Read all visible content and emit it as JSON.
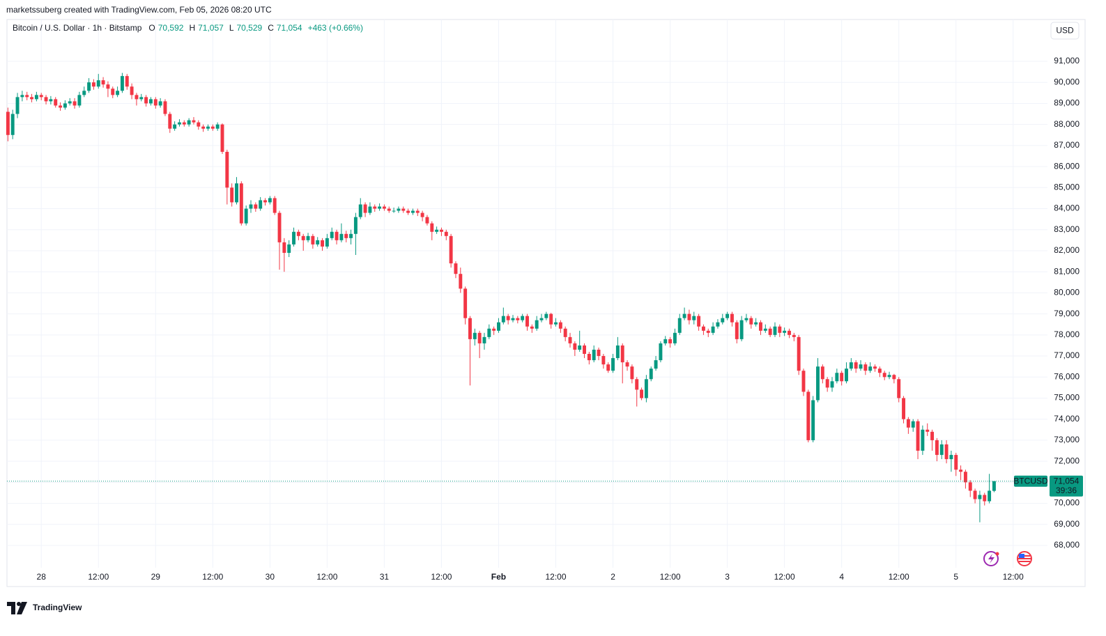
{
  "chart_data": {
    "type": "candlestick",
    "attribution": "marketssuberg created with TradingView.com, Feb 05, 2026 08:20 UTC",
    "title": "Bitcoin / U.S. Dollar · 1h · Bitstamp",
    "ohlc_legend": [
      {
        "label": "O",
        "value": "70,592"
      },
      {
        "label": "H",
        "value": "71,057"
      },
      {
        "label": "L",
        "value": "70,529"
      },
      {
        "label": "C",
        "value": "71,054"
      }
    ],
    "change": "+463 (+0.66%)",
    "currency": "USD",
    "symbol_tag": "BTCUSD",
    "last_price_label": "71,054",
    "countdown": "39:36",
    "brand": "TradingView",
    "up_color": "#089981",
    "down_color": "#f23645",
    "grid": true,
    "xlim": [
      -0.2,
      218.2
    ],
    "ylim": [
      66941,
      92986
    ],
    "xticks": [
      {
        "value": 7,
        "label": "28"
      },
      {
        "value": 19,
        "label": "12:00"
      },
      {
        "value": 31,
        "label": "29"
      },
      {
        "value": 43,
        "label": "12:00"
      },
      {
        "value": 55,
        "label": "30"
      },
      {
        "value": 67,
        "label": "12:00"
      },
      {
        "value": 79,
        "label": "31"
      },
      {
        "value": 91,
        "label": "12:00"
      },
      {
        "value": 103,
        "label": "Feb"
      },
      {
        "value": 115,
        "label": "12:00"
      },
      {
        "value": 127,
        "label": "2"
      },
      {
        "value": 139,
        "label": "12:00"
      },
      {
        "value": 151,
        "label": "3"
      },
      {
        "value": 163,
        "label": "12:00"
      },
      {
        "value": 175,
        "label": "4"
      },
      {
        "value": 187,
        "label": "12:00"
      },
      {
        "value": 199,
        "label": "5"
      },
      {
        "value": 211,
        "label": "12:00"
      }
    ],
    "yticks": [
      {
        "value": 68000,
        "label": "68,000"
      },
      {
        "value": 69000,
        "label": "69,000"
      },
      {
        "value": 70000,
        "label": "70,000"
      },
      {
        "value": 71000,
        "label": "71,000"
      },
      {
        "value": 72000,
        "label": "72,000"
      },
      {
        "value": 73000,
        "label": "73,000"
      },
      {
        "value": 74000,
        "label": "74,000"
      },
      {
        "value": 75000,
        "label": "75,000"
      },
      {
        "value": 76000,
        "label": "76,000"
      },
      {
        "value": 77000,
        "label": "77,000"
      },
      {
        "value": 78000,
        "label": "78,000"
      },
      {
        "value": 79000,
        "label": "79,000"
      },
      {
        "value": 80000,
        "label": "80,000"
      },
      {
        "value": 81000,
        "label": "81,000"
      },
      {
        "value": 82000,
        "label": "82,000"
      },
      {
        "value": 83000,
        "label": "83,000"
      },
      {
        "value": 84000,
        "label": "84,000"
      },
      {
        "value": 85000,
        "label": "85,000"
      },
      {
        "value": 86000,
        "label": "86,000"
      },
      {
        "value": 87000,
        "label": "87,000"
      },
      {
        "value": 88000,
        "label": "88,000"
      },
      {
        "value": 89000,
        "label": "89,000"
      },
      {
        "value": 90000,
        "label": "90,000"
      },
      {
        "value": 91000,
        "label": "91,000"
      }
    ],
    "open": [
      88600,
      87500,
      88500,
      89300,
      89400,
      89300,
      89200,
      89400,
      89300,
      89100,
      89200,
      88900,
      88800,
      89000,
      89100,
      88900,
      89400,
      89600,
      90000,
      89800,
      90100,
      89900,
      89700,
      89400,
      89600,
      90300,
      89800,
      89400,
      89200,
      89300,
      89000,
      89200,
      88900,
      89100,
      88500,
      87800,
      88000,
      88100,
      88000,
      88200,
      88100,
      87900,
      87800,
      87900,
      87800,
      88000,
      86700,
      85000,
      84300,
      85200,
      83300,
      84000,
      84200,
      84000,
      84400,
      84300,
      84500,
      83800,
      82400,
      81900,
      82300,
      82900,
      82700,
      82500,
      82700,
      82300,
      82500,
      82200,
      82600,
      82900,
      82500,
      82800,
      82600,
      82800,
      83600,
      84200,
      83800,
      84100,
      84000,
      84100,
      84000,
      83900,
      83900,
      84000,
      83900,
      83800,
      83900,
      83800,
      83600,
      83300,
      82900,
      83000,
      82900,
      82700,
      81400,
      80900,
      80200,
      78800,
      77800,
      78100,
      77600,
      77900,
      78300,
      78200,
      78600,
      78900,
      78700,
      78800,
      78700,
      78900,
      78400,
      78300,
      78700,
      78800,
      79000,
      78500,
      78600,
      78300,
      77900,
      77600,
      77300,
      77500,
      77100,
      76800,
      77300,
      77000,
      76600,
      76300,
      76900,
      77500,
      76700,
      76500,
      75900,
      75400,
      75000,
      75900,
      76400,
      76800,
      77600,
      77800,
      77600,
      78100,
      78800,
      79000,
      78700,
      78900,
      78400,
      78200,
      78100,
      78400,
      78600,
      78800,
      79000,
      78600,
      77800,
      78700,
      78800,
      78500,
      78600,
      78200,
      78300,
      78000,
      78400,
      78100,
      78200,
      78000,
      77900,
      76300,
      75300,
      73000,
      74900,
      76500,
      75900,
      75500,
      75800,
      76200,
      75800,
      76400,
      76700,
      76400,
      76600,
      76300,
      76500,
      76400,
      76200,
      76000,
      76100,
      75900,
      75000,
      74000,
      73600,
      73900,
      72500,
      73500,
      73400,
      73000,
      72300,
      72800,
      72100,
      72300,
      71600,
      71500,
      71000,
      70600,
      70200,
      70400,
      70100,
      70592
    ],
    "high": [
      88800,
      88700,
      89500,
      89600,
      89550,
      89450,
      89550,
      89500,
      89400,
      89350,
      89300,
      89050,
      89150,
      89250,
      89250,
      89550,
      89800,
      90200,
      90150,
      90400,
      90250,
      90050,
      89800,
      89800,
      90450,
      90400,
      89950,
      89500,
      89450,
      89400,
      89300,
      89300,
      89250,
      89200,
      88600,
      88150,
      88250,
      88200,
      88300,
      88350,
      88200,
      88000,
      88000,
      88000,
      88100,
      88050,
      86800,
      85200,
      85500,
      85300,
      84150,
      84400,
      84300,
      84550,
      84500,
      84600,
      84600,
      83900,
      82600,
      82500,
      83100,
      83000,
      82800,
      82850,
      82800,
      82650,
      82600,
      82800,
      83100,
      83000,
      83300,
      82950,
      83000,
      83800,
      84500,
      84300,
      84300,
      84200,
      84250,
      84200,
      84100,
      84050,
      84100,
      84100,
      84000,
      84000,
      84000,
      83900,
      83700,
      83400,
      83150,
      83100,
      83000,
      82800,
      81500,
      81200,
      80300,
      78900,
      78300,
      78200,
      78100,
      78500,
      78400,
      78800,
      79300,
      79000,
      78950,
      78900,
      79000,
      79000,
      78500,
      78900,
      79000,
      79100,
      79050,
      78800,
      78700,
      78400,
      78100,
      77700,
      78200,
      77600,
      77200,
      77500,
      77400,
      77100,
      76700,
      77100,
      77900,
      77600,
      76800,
      76600,
      76000,
      75500,
      76100,
      76500,
      77000,
      77700,
      77950,
      77900,
      78300,
      79000,
      79300,
      79200,
      79100,
      79000,
      78500,
      78300,
      78600,
      78750,
      79000,
      79100,
      79100,
      78700,
      78900,
      79000,
      78900,
      78800,
      78700,
      78500,
      78400,
      78600,
      78500,
      78350,
      78300,
      78100,
      78000,
      76400,
      75400,
      75100,
      76900,
      76600,
      76000,
      76000,
      76400,
      76300,
      76700,
      76900,
      76800,
      76800,
      76700,
      76700,
      76600,
      76500,
      76300,
      76250,
      76150,
      76000,
      75100,
      74100,
      74000,
      74000,
      73700,
      73800,
      73500,
      73100,
      73000,
      73000,
      72500,
      72400,
      71800,
      71600,
      71100,
      70700,
      70600,
      70500,
      71400,
      71057
    ],
    "low": [
      87200,
      87300,
      88300,
      89100,
      89150,
      89050,
      89100,
      89150,
      88950,
      88950,
      88800,
      88650,
      88700,
      88900,
      88750,
      88800,
      89300,
      89500,
      89650,
      89700,
      89750,
      89300,
      89250,
      89300,
      89500,
      89650,
      89200,
      88900,
      89100,
      88850,
      88900,
      88750,
      88800,
      88400,
      87600,
      87700,
      87900,
      87900,
      87900,
      88000,
      87750,
      87650,
      87700,
      87700,
      87700,
      86600,
      84200,
      84100,
      84200,
      83200,
      83200,
      83800,
      83850,
      83900,
      84150,
      84200,
      83700,
      81100,
      81000,
      81700,
      82200,
      82500,
      82000,
      82400,
      82100,
      82200,
      82000,
      82100,
      82500,
      82300,
      82400,
      82400,
      82300,
      81800,
      83500,
      83600,
      83700,
      83850,
      83900,
      83900,
      83800,
      83800,
      83800,
      83800,
      83700,
      83700,
      83650,
      83400,
      83200,
      82500,
      82800,
      82700,
      82500,
      81200,
      80700,
      80000,
      78500,
      75600,
      77500,
      76900,
      77300,
      77800,
      78000,
      78100,
      78500,
      78500,
      78600,
      78550,
      78600,
      78200,
      78100,
      78200,
      78600,
      78700,
      78300,
      78400,
      78100,
      77700,
      77400,
      77000,
      77200,
      76900,
      76600,
      76700,
      76800,
      76400,
      76200,
      76200,
      76800,
      75700,
      76300,
      75700,
      74600,
      74900,
      74800,
      75800,
      76300,
      76700,
      77500,
      77400,
      77500,
      78000,
      78700,
      78500,
      78500,
      78200,
      78000,
      77900,
      78000,
      78300,
      78500,
      78700,
      78400,
      77600,
      77700,
      78600,
      78300,
      78400,
      78000,
      78100,
      77900,
      77900,
      77900,
      77950,
      77850,
      77700,
      76100,
      75100,
      72900,
      72900,
      74800,
      75700,
      75300,
      75300,
      75700,
      75600,
      75700,
      76300,
      76200,
      76300,
      76100,
      76200,
      76250,
      76000,
      75850,
      75900,
      75700,
      74800,
      73800,
      73300,
      73400,
      72100,
      72300,
      73200,
      72500,
      72000,
      72100,
      71900,
      71500,
      71300,
      71100,
      70700,
      70300,
      70000,
      69100,
      69900,
      70000,
      70529
    ],
    "close": [
      87500,
      88500,
      89300,
      89400,
      89300,
      89200,
      89400,
      89300,
      89100,
      89200,
      88900,
      88800,
      89000,
      89100,
      88900,
      89400,
      89600,
      90000,
      89800,
      90100,
      89900,
      89700,
      89400,
      89600,
      90300,
      89800,
      89400,
      89200,
      89300,
      89000,
      89200,
      88900,
      89100,
      88500,
      87800,
      88000,
      88100,
      88000,
      88200,
      88100,
      87900,
      87800,
      87900,
      87800,
      88000,
      86700,
      85000,
      84300,
      85200,
      83300,
      84000,
      84200,
      84000,
      84400,
      84300,
      84500,
      83800,
      82400,
      81900,
      82300,
      82900,
      82700,
      82500,
      82700,
      82300,
      82500,
      82200,
      82600,
      82900,
      82500,
      82800,
      82600,
      82800,
      83600,
      84200,
      83800,
      84100,
      84000,
      84100,
      84000,
      83900,
      83900,
      84000,
      83900,
      83800,
      83900,
      83800,
      83600,
      83300,
      82900,
      83000,
      82900,
      82700,
      81400,
      80900,
      80200,
      78800,
      77800,
      78100,
      77600,
      77900,
      78300,
      78200,
      78600,
      78900,
      78700,
      78800,
      78700,
      78900,
      78400,
      78300,
      78700,
      78800,
      79000,
      78500,
      78600,
      78300,
      77900,
      77600,
      77300,
      77500,
      77100,
      76800,
      77300,
      77000,
      76600,
      76300,
      76900,
      77500,
      76700,
      76500,
      75900,
      75400,
      75000,
      75900,
      76400,
      76800,
      77600,
      77800,
      77600,
      78100,
      78800,
      79000,
      78700,
      78900,
      78400,
      78200,
      78100,
      78400,
      78600,
      78800,
      79000,
      78600,
      77800,
      78700,
      78800,
      78500,
      78600,
      78200,
      78300,
      78000,
      78400,
      78100,
      78200,
      78000,
      77900,
      76300,
      75300,
      73000,
      74900,
      76500,
      75900,
      75500,
      75800,
      76200,
      75800,
      76400,
      76700,
      76400,
      76600,
      76300,
      76500,
      76400,
      76200,
      76000,
      76100,
      75900,
      75000,
      74000,
      73600,
      73900,
      72500,
      73500,
      73400,
      73000,
      72300,
      72800,
      72100,
      72300,
      71600,
      71500,
      71000,
      70600,
      70200,
      70400,
      70100,
      70600,
      71054
    ]
  }
}
